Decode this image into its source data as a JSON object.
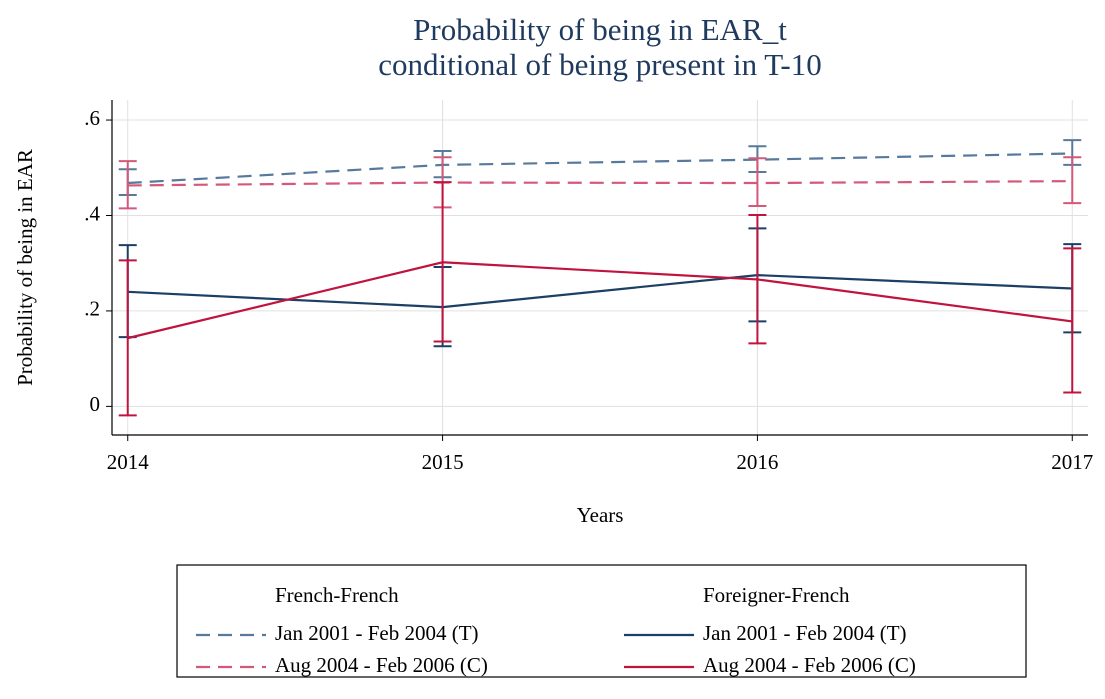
{
  "chart_data": {
    "type": "line",
    "title": [
      "Probability of being in EAR_t",
      "conditional of being present in T-10"
    ],
    "x_label": "Years",
    "y_label": "Probability of being in EAR",
    "x": [
      2014,
      2015,
      2016,
      2017
    ],
    "xlim": [
      2013.95,
      2017.05
    ],
    "xticks": [
      2014,
      2015,
      2016,
      2017
    ],
    "ylim": [
      -0.06,
      0.642
    ],
    "yticks": [
      0,
      {
        "value": 0.2,
        "label": ".2"
      },
      {
        "value": 0.4,
        "label": ".4"
      },
      {
        "value": 0.6,
        "label": ".6"
      }
    ],
    "grid": true,
    "series": [
      {
        "name": "Jan 2001 - Feb 2004 (T)",
        "group": "French-French",
        "color": "#56799c",
        "style": "dashed",
        "values": [
          0.468,
          0.506,
          0.517,
          0.53
        ],
        "lower": [
          0.443,
          0.48,
          0.491,
          0.506
        ],
        "upper": [
          0.497,
          0.535,
          0.545,
          0.558
        ]
      },
      {
        "name": "Aug 2004 - Feb 2006 (C)",
        "group": "French-French",
        "color": "#d4587a",
        "style": "dashed",
        "values": [
          0.463,
          0.469,
          0.468,
          0.472
        ],
        "lower": [
          0.415,
          0.417,
          0.42,
          0.426
        ],
        "upper": [
          0.514,
          0.522,
          0.52,
          0.522
        ]
      },
      {
        "name": "Jan 2001 - Feb 2004 (T)",
        "group": "Foreigner-French",
        "color": "#1c3f66",
        "style": "solid",
        "values": [
          0.24,
          0.208,
          0.275,
          0.247
        ],
        "lower": [
          0.145,
          0.126,
          0.178,
          0.155
        ],
        "upper": [
          0.338,
          0.292,
          0.373,
          0.34
        ]
      },
      {
        "name": "Aug 2004 - Feb 2006 (C)",
        "group": "Foreigner-French",
        "color": "#c0143f",
        "style": "solid",
        "values": [
          0.143,
          0.302,
          0.266,
          0.178
        ],
        "lower": [
          -0.019,
          0.136,
          0.132,
          0.029
        ],
        "upper": [
          0.306,
          0.47,
          0.401,
          0.331
        ]
      }
    ]
  }
}
